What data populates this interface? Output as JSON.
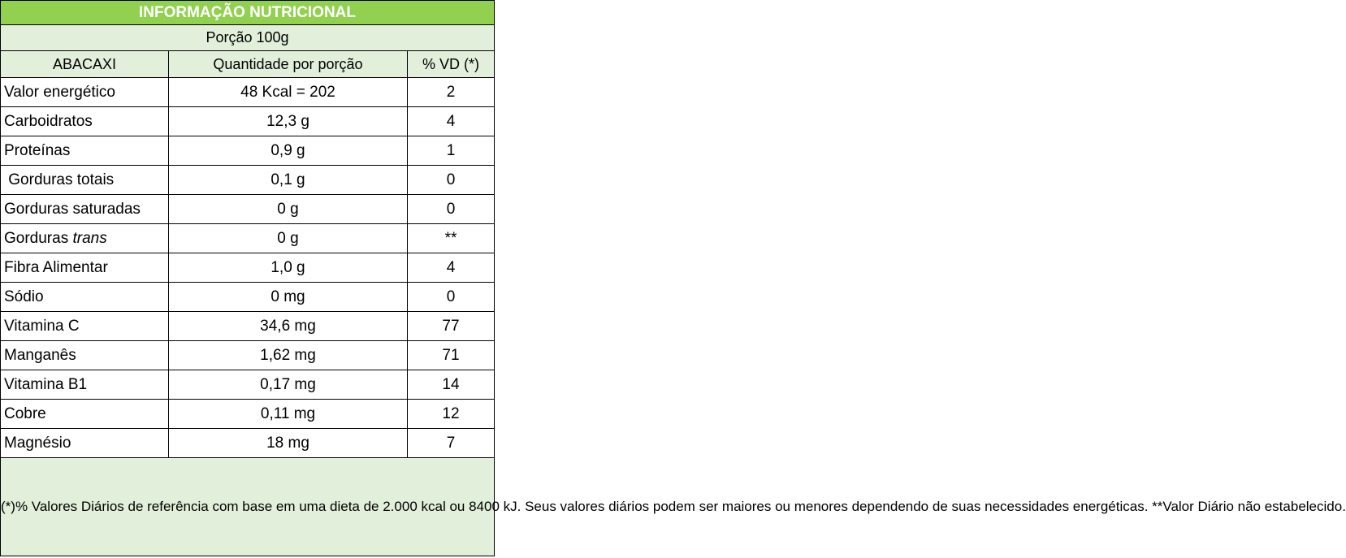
{
  "label": {
    "title": "INFORMAÇÃO NUTRICIONAL",
    "portion": "Porção 100g",
    "headers": {
      "food": "ABACAXI",
      "quantity": "Quantidade por porção",
      "dv": "% VD (*)"
    },
    "rows": [
      {
        "nutrient": "Valor energético",
        "quantity": "48 Kcal = 202",
        "dv": "2"
      },
      {
        "nutrient": "Carboidratos",
        "quantity": "12,3 g",
        "dv": "4"
      },
      {
        "nutrient": "Proteínas",
        "quantity": "0,9 g",
        "dv": "1"
      },
      {
        "nutrient": " Gorduras totais",
        "quantity": "0,1 g",
        "dv": "0"
      },
      {
        "nutrient": "Gorduras saturadas",
        "quantity": "0 g",
        "dv": "0"
      },
      {
        "nutrient_prefix": "Gorduras ",
        "nutrient_italic": "trans",
        "quantity": "0 g",
        "dv": "**"
      },
      {
        "nutrient": "Fibra Alimentar",
        "quantity": "1,0 g",
        "dv": "4"
      },
      {
        "nutrient": "Sódio",
        "quantity": "0 mg",
        "dv": "0"
      },
      {
        "nutrient": "Vitamina C",
        "quantity": "34,6 mg",
        "dv": "77"
      },
      {
        "nutrient": "Manganês",
        "quantity": "1,62 mg",
        "dv": "71"
      },
      {
        "nutrient": "Vitamina B1",
        "quantity": "0,17 mg",
        "dv": "14"
      },
      {
        "nutrient": "Cobre",
        "quantity": "0,11 mg",
        "dv": "12"
      },
      {
        "nutrient": "Magnésio",
        "quantity": "18 mg",
        "dv": "7"
      }
    ],
    "footnote": "(*)% Valores Diários de referência com base em uma dieta de 2.000 kcal ou 8400 kJ. Seus valores diários podem ser maiores ou menores dependendo de suas necessidades energéticas. **Valor Diário não estabelecido."
  },
  "colors": {
    "title_bg": "#92d050",
    "title_text": "#ffffff",
    "header_bg": "#e2efda",
    "border": "#000000"
  }
}
